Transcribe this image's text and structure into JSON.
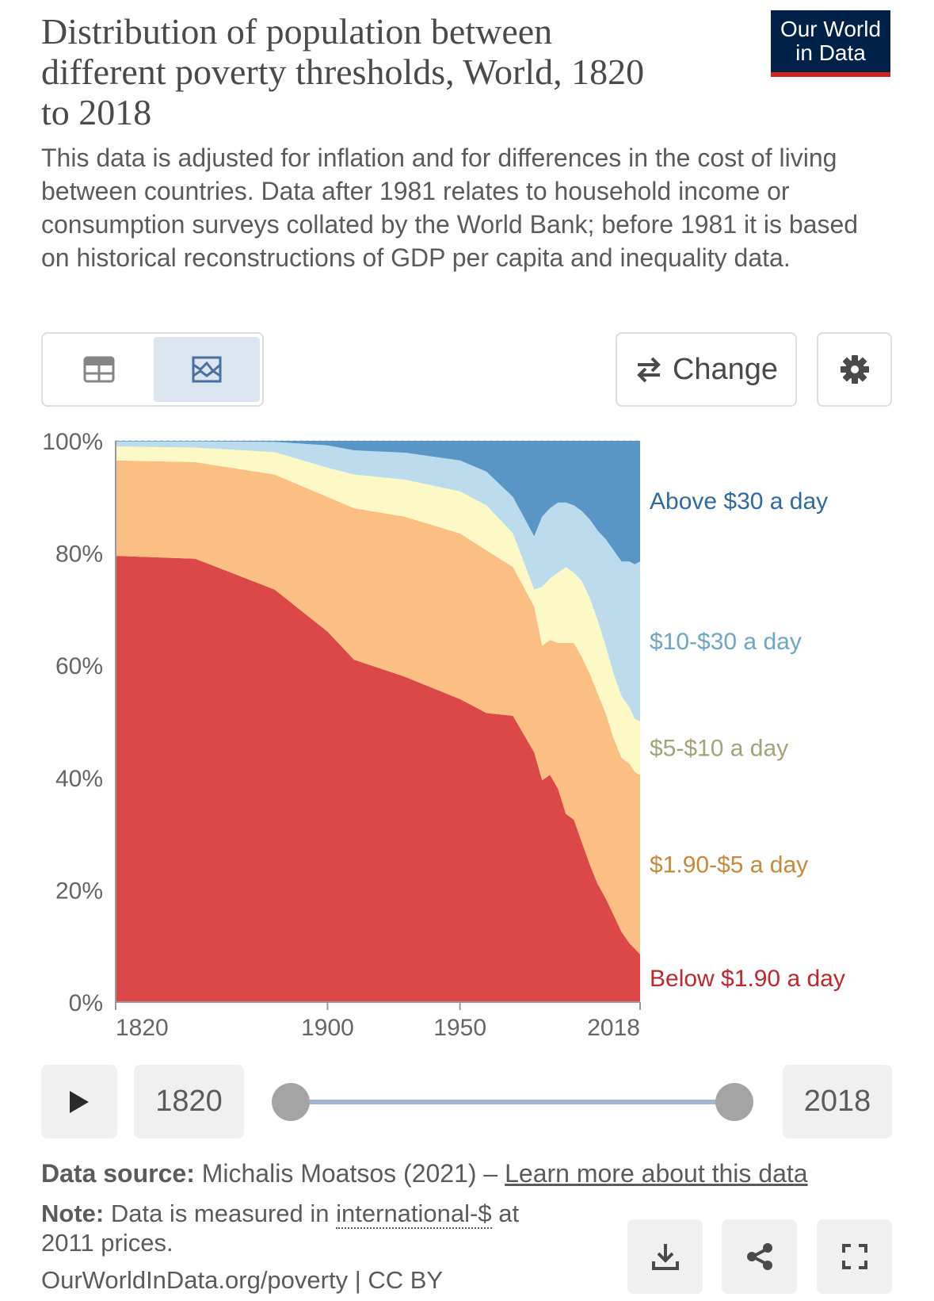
{
  "title": "Distribution of population between different poverty thresholds, World, 1820 to 2018",
  "subtitle": "This data is adjusted for inflation and for differences in the cost of living between countries. Data after 1981 relates to household income or consumption surveys collated by the World Bank; before 1981 it is based on historical reconstructions of GDP per capita and inequality data.",
  "logo": {
    "line1": "Our World",
    "line2": "in Data",
    "bg": "#002147",
    "accent": "#ce261e"
  },
  "toolbar": {
    "table_icon": "table-icon",
    "chart_icon": "chart-icon",
    "change_label": "Change",
    "change_icon": "swap-arrows-icon",
    "settings_icon": "gear-icon"
  },
  "timeline": {
    "play_icon": "play-icon",
    "start_year": "1820",
    "end_year": "2018"
  },
  "footer": {
    "source_label": "Data source:",
    "source_text": " Michalis Moatsos (2021) – ",
    "source_link": "Learn more about this data",
    "note_label": "Note:",
    "note_pre": " Data is measured in ",
    "note_term": "international-$",
    "note_post": " at 2011 prices.",
    "url": "OurWorldInData.org/poverty | CC BY",
    "download_icon": "download-icon",
    "share_icon": "share-icon",
    "fullscreen_icon": "fullscreen-icon"
  },
  "chart_data": {
    "type": "area",
    "stacked": true,
    "ylim": [
      0,
      100
    ],
    "xlim": [
      1820,
      2018
    ],
    "y_ticks": [
      "0%",
      "20%",
      "40%",
      "60%",
      "80%",
      "100%"
    ],
    "y_tick_values": [
      0,
      20,
      40,
      60,
      80,
      100
    ],
    "x_ticks": [
      "1820",
      "1900",
      "1950",
      "2018"
    ],
    "x_tick_values": [
      1820,
      1900,
      1950,
      2018
    ],
    "grid": true,
    "x": [
      1820,
      1850,
      1880,
      1900,
      1910,
      1929,
      1950,
      1960,
      1970,
      1978,
      1981,
      1984,
      1987,
      1990,
      1993,
      1996,
      1999,
      2002,
      2005,
      2008,
      2011,
      2014,
      2016,
      2018
    ],
    "series": [
      {
        "name": "Below $1.90 a day",
        "color": "#dc4848",
        "label_color": "#c0262a",
        "values": [
          79.5,
          79.0,
          73.5,
          66,
          61,
          58,
          54,
          51.5,
          51,
          44.5,
          39.5,
          40.5,
          38,
          33.5,
          32.5,
          28.5,
          24.5,
          21,
          18.5,
          15.5,
          12.5,
          10.5,
          9.5,
          8.5
        ]
      },
      {
        "name": "$1.90-$5 a day",
        "color": "#fbbf84",
        "label_color": "#c7893a",
        "values": [
          17,
          17.2,
          20.5,
          24,
          27,
          28.5,
          29.5,
          29,
          26.5,
          26,
          24,
          24,
          26,
          30.5,
          31.5,
          33,
          34,
          34,
          33,
          31.5,
          31,
          32,
          31.5,
          32
        ]
      },
      {
        "name": "$5-$10 a day",
        "color": "#fdf9c7",
        "label_color": "#a3a37a",
        "values": [
          2.5,
          2.6,
          4,
          5.2,
          6,
          6.6,
          7.5,
          8,
          6,
          3,
          10.5,
          11,
          12.5,
          13.5,
          12.5,
          13.5,
          13.5,
          13,
          12,
          11.5,
          11,
          10,
          9.5,
          9.5
        ]
      },
      {
        "name": "$10-$30 a day",
        "color": "#bcdced",
        "label_color": "#6ea6c4",
        "values": [
          0.9,
          1.1,
          1.8,
          4,
          4.3,
          4.8,
          5.5,
          6,
          6.5,
          9.5,
          12.5,
          12.5,
          12.5,
          11.5,
          12,
          12.5,
          14,
          16,
          19,
          22,
          24,
          26,
          27.5,
          28.5
        ]
      },
      {
        "name": "Above $30 a day",
        "color": "#5996c5",
        "label_color": "#2f6ba0",
        "values": [
          0.1,
          0.1,
          0.2,
          0.8,
          1.7,
          2.1,
          3.5,
          5.5,
          10,
          17,
          13.5,
          12,
          11,
          11,
          11.5,
          12.5,
          14,
          16,
          17.5,
          19.5,
          21.5,
          21.5,
          22,
          21.5
        ]
      }
    ]
  }
}
